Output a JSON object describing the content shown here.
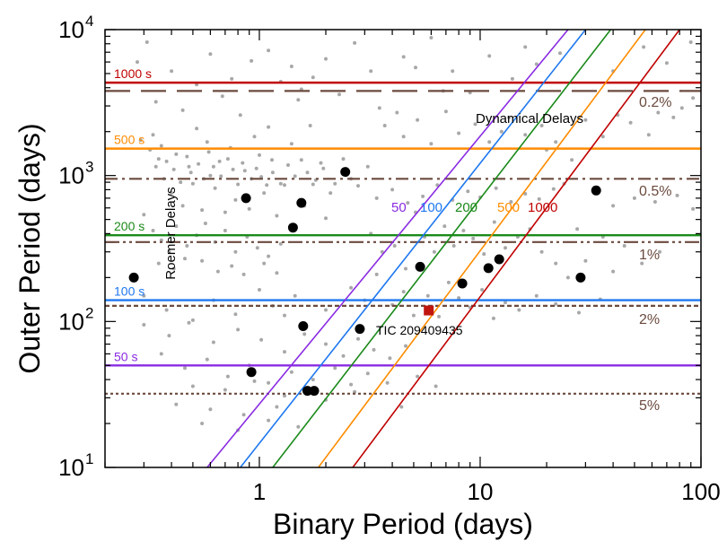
{
  "chart_data": {
    "type": "scatter",
    "xscale": "log",
    "yscale": "log",
    "xlim": [
      0.2,
      100
    ],
    "ylim": [
      10,
      10000
    ],
    "xlabel": "Binary Period (days)",
    "ylabel": "Outer Period (days)",
    "x_ticks": [
      {
        "value": 1,
        "label": "1"
      },
      {
        "value": 10,
        "label": "10"
      },
      {
        "value": 100,
        "label": "100"
      }
    ],
    "y_ticks": [
      {
        "value": 10,
        "base": "10",
        "exp": "1"
      },
      {
        "value": 100,
        "base": "10",
        "exp": "2"
      },
      {
        "value": 1000,
        "base": "10",
        "exp": "3"
      },
      {
        "value": 10000,
        "base": "10",
        "exp": "4"
      }
    ],
    "roemer_delays": [
      {
        "label": "50 s",
        "y": 50,
        "color": "#8a2be2"
      },
      {
        "label": "100 s",
        "y": 140,
        "color": "#1e78f0"
      },
      {
        "label": "200 s",
        "y": 390,
        "color": "#1a8a1a"
      },
      {
        "label": "500 s",
        "y": 1530,
        "color": "#ff8c00"
      },
      {
        "label": "1000 s",
        "y": 4330,
        "color": "#c00000"
      }
    ],
    "dynamical_delays": [
      {
        "label": "50",
        "color": "#8a2be2",
        "points": [
          [
            0.58,
            10
          ],
          [
            25,
            10000
          ]
        ]
      },
      {
        "label": "100",
        "color": "#1e78f0",
        "points": [
          [
            0.82,
            10
          ],
          [
            30,
            10000
          ]
        ]
      },
      {
        "label": "200",
        "color": "#1a8a1a",
        "points": [
          [
            1.15,
            10
          ],
          [
            39,
            10000
          ]
        ]
      },
      {
        "label": "500",
        "color": "#ff8c00",
        "points": [
          [
            1.85,
            10
          ],
          [
            56,
            10000
          ]
        ]
      },
      {
        "label": "1000",
        "color": "#c00000",
        "points": [
          [
            2.65,
            10
          ],
          [
            80,
            10000
          ]
        ]
      }
    ],
    "detection_limits": [
      {
        "label": "0.2%",
        "y": 3800,
        "dash": "28 12"
      },
      {
        "label": "0.5%",
        "y": 950,
        "dash": "14 5 3 5"
      },
      {
        "label": "1%",
        "y": 350,
        "dash": "16 4 3 4 3 4"
      },
      {
        "label": "2%",
        "y": 128,
        "dash": "5 3"
      },
      {
        "label": "5%",
        "y": 32,
        "dash": "3 3"
      }
    ],
    "region_labels": {
      "roemer": "Roemer Delays",
      "dynamical": "Dynamical Delays"
    },
    "detected_systems": [
      [
        0.27,
        200
      ],
      [
        0.87,
        700
      ],
      [
        0.92,
        45
      ],
      [
        1.42,
        440
      ],
      [
        1.55,
        650
      ],
      [
        1.58,
        93
      ],
      [
        1.65,
        33.5
      ],
      [
        1.77,
        33.5
      ],
      [
        2.45,
        1060
      ],
      [
        2.85,
        89
      ],
      [
        5.35,
        237
      ],
      [
        8.3,
        182
      ],
      [
        10.9,
        232
      ],
      [
        12.2,
        267
      ],
      [
        28.5,
        200
      ],
      [
        33.5,
        790
      ]
    ],
    "target": {
      "label": "TIC 209409435",
      "x": 5.85,
      "y": 119,
      "color": "#c0150f"
    },
    "background_points": [
      [
        0.31,
        8200
      ],
      [
        0.33,
        1900
      ],
      [
        0.35,
        1300
      ],
      [
        0.37,
        950
      ],
      [
        0.4,
        760
      ],
      [
        0.42,
        1400
      ],
      [
        0.45,
        620
      ],
      [
        0.48,
        1150
      ],
      [
        0.5,
        880
      ],
      [
        0.52,
        2100
      ],
      [
        0.55,
        580
      ],
      [
        0.58,
        1700
      ],
      [
        0.6,
        1000
      ],
      [
        0.63,
        820
      ],
      [
        0.66,
        1250
      ],
      [
        0.7,
        560
      ],
      [
        0.74,
        1550
      ],
      [
        0.78,
        680
      ],
      [
        0.82,
        2600
      ],
      [
        0.86,
        1080
      ],
      [
        0.9,
        590
      ],
      [
        0.95,
        1850
      ],
      [
        1.0,
        1380
      ],
      [
        1.05,
        760
      ],
      [
        1.1,
        2150
      ],
      [
        1.15,
        1050
      ],
      [
        1.2,
        530
      ],
      [
        1.3,
        860
      ],
      [
        1.4,
        1650
      ],
      [
        1.5,
        3300
      ],
      [
        1.6,
        620
      ],
      [
        1.7,
        2200
      ],
      [
        1.8,
        930
      ],
      [
        1.9,
        1220
      ],
      [
        2.0,
        510
      ],
      [
        2.1,
        760
      ],
      [
        0.3,
        540
      ],
      [
        0.33,
        420
      ],
      [
        0.36,
        360
      ],
      [
        0.39,
        300
      ],
      [
        0.42,
        450
      ],
      [
        0.47,
        330
      ],
      [
        0.52,
        390
      ],
      [
        0.57,
        470
      ],
      [
        0.63,
        350
      ],
      [
        0.7,
        420
      ],
      [
        0.78,
        300
      ],
      [
        0.88,
        380
      ],
      [
        0.98,
        320
      ],
      [
        1.1,
        280
      ],
      [
        1.25,
        340
      ],
      [
        0.35,
        250
      ],
      [
        0.41,
        230
      ],
      [
        0.46,
        270
      ],
      [
        0.55,
        260
      ],
      [
        0.65,
        220
      ],
      [
        0.75,
        240
      ],
      [
        0.85,
        210
      ],
      [
        1.05,
        250
      ],
      [
        1.2,
        215
      ],
      [
        0.29,
        1750
      ],
      [
        0.32,
        1500
      ],
      [
        0.34,
        1150
      ],
      [
        0.36,
        1600
      ],
      [
        0.38,
        1250
      ],
      [
        0.41,
        1100
      ],
      [
        0.44,
        900
      ],
      [
        0.47,
        1350
      ],
      [
        0.49,
        1050
      ],
      [
        0.53,
        1200
      ],
      [
        0.56,
        950
      ],
      [
        0.59,
        1450
      ],
      [
        0.62,
        1150
      ],
      [
        0.67,
        990
      ],
      [
        0.72,
        1300
      ],
      [
        0.76,
        1100
      ],
      [
        0.8,
        870
      ],
      [
        0.84,
        1220
      ],
      [
        0.92,
        950
      ],
      [
        0.97,
        1120
      ],
      [
        1.02,
        980
      ],
      [
        1.08,
        860
      ],
      [
        1.14,
        1280
      ],
      [
        1.25,
        880
      ],
      [
        1.35,
        1180
      ],
      [
        1.45,
        990
      ],
      [
        1.55,
        1280
      ],
      [
        1.65,
        1050
      ],
      [
        1.75,
        870
      ],
      [
        1.95,
        1120
      ],
      [
        2.2,
        880
      ],
      [
        2.4,
        1300
      ],
      [
        2.6,
        950
      ],
      [
        2.8,
        850
      ],
      [
        3.1,
        1150
      ],
      [
        0.34,
        3200
      ],
      [
        0.45,
        2800
      ],
      [
        0.52,
        4200
      ],
      [
        0.68,
        3500
      ],
      [
        0.92,
        6100
      ],
      [
        1.25,
        4400
      ],
      [
        1.55,
        3900
      ],
      [
        1.75,
        4700
      ],
      [
        2.3,
        3600
      ],
      [
        3.5,
        2900
      ],
      [
        4.2,
        2700
      ],
      [
        5.1,
        5500
      ],
      [
        6.8,
        3800
      ],
      [
        9.0,
        3700
      ],
      [
        12.5,
        2000
      ],
      [
        16.0,
        7600
      ],
      [
        20.0,
        1500
      ],
      [
        24.0,
        880
      ],
      [
        26.0,
        1280
      ],
      [
        36.0,
        1850
      ],
      [
        48.0,
        2300
      ],
      [
        64.0,
        2700
      ],
      [
        82.0,
        2900
      ],
      [
        92.0,
        3400
      ],
      [
        3.2,
        400
      ],
      [
        3.6,
        300
      ],
      [
        4.1,
        330
      ],
      [
        4.6,
        230
      ],
      [
        5.1,
        560
      ],
      [
        5.6,
        380
      ],
      [
        6.2,
        300
      ],
      [
        6.9,
        450
      ],
      [
        7.6,
        330
      ],
      [
        8.4,
        420
      ],
      [
        9.3,
        370
      ],
      [
        10.4,
        290
      ],
      [
        11.6,
        480
      ],
      [
        13.0,
        320
      ],
      [
        14.8,
        380
      ],
      [
        16.8,
        430
      ],
      [
        19.0,
        300
      ],
      [
        22.0,
        250
      ],
      [
        25.0,
        200
      ],
      [
        27.5,
        430
      ],
      [
        30.0,
        260
      ],
      [
        36.0,
        380
      ],
      [
        40.0,
        220
      ],
      [
        45.0,
        330
      ],
      [
        54.0,
        250
      ],
      [
        65.0,
        300
      ],
      [
        2.6,
        170
      ],
      [
        3.0,
        140
      ],
      [
        3.4,
        210
      ],
      [
        4.0,
        130
      ],
      [
        4.5,
        160
      ],
      [
        5.0,
        110
      ],
      [
        5.8,
        150
      ],
      [
        6.5,
        108
      ],
      [
        7.2,
        185
      ],
      [
        8.0,
        145
      ],
      [
        9.0,
        125
      ],
      [
        10.2,
        165
      ],
      [
        11.5,
        105
      ],
      [
        13.0,
        135
      ],
      [
        15.0,
        120
      ],
      [
        18.0,
        150
      ],
      [
        22.0,
        132
      ],
      [
        28.0,
        115
      ],
      [
        35.0,
        142
      ],
      [
        0.3,
        150
      ],
      [
        0.38,
        120
      ],
      [
        0.5,
        102
      ],
      [
        0.62,
        140
      ],
      [
        0.78,
        112
      ],
      [
        1.0,
        165
      ],
      [
        1.15,
        128
      ],
      [
        1.3,
        110
      ],
      [
        1.45,
        150
      ],
      [
        2.0,
        120
      ],
      [
        0.3,
        95
      ],
      [
        0.39,
        80
      ],
      [
        0.48,
        98
      ],
      [
        0.62,
        72
      ],
      [
        0.8,
        88
      ],
      [
        1.02,
        75
      ],
      [
        1.3,
        62
      ],
      [
        1.6,
        82
      ],
      [
        2.0,
        70
      ],
      [
        2.4,
        58
      ],
      [
        2.8,
        76
      ],
      [
        3.3,
        64
      ],
      [
        3.9,
        56
      ],
      [
        4.6,
        68
      ],
      [
        0.36,
        60
      ],
      [
        0.46,
        48
      ],
      [
        0.58,
        55
      ],
      [
        0.72,
        42
      ],
      [
        0.9,
        50
      ],
      [
        1.1,
        38
      ],
      [
        1.4,
        45
      ],
      [
        1.75,
        40
      ],
      [
        2.2,
        48
      ],
      [
        2.6,
        37
      ],
      [
        3.1,
        44
      ],
      [
        0.5,
        36
      ],
      [
        0.7,
        34
      ],
      [
        0.95,
        39
      ],
      [
        1.3,
        31
      ],
      [
        2.0,
        29
      ],
      [
        2.7,
        33
      ],
      [
        0.42,
        27
      ],
      [
        0.6,
        25
      ],
      [
        0.85,
        23
      ],
      [
        1.2,
        26
      ],
      [
        0.55,
        20
      ],
      [
        0.8,
        18
      ],
      [
        1.1,
        21
      ],
      [
        1.5,
        19
      ],
      [
        3.8,
        38
      ],
      [
        5.2,
        42
      ],
      [
        6.3,
        36
      ],
      [
        4.4,
        26
      ],
      [
        0.28,
        6000
      ],
      [
        0.4,
        5200
      ],
      [
        0.6,
        6800
      ],
      [
        0.75,
        4600
      ],
      [
        1.1,
        7200
      ],
      [
        1.4,
        5600
      ],
      [
        2.0,
        6300
      ],
      [
        2.7,
        8100
      ],
      [
        3.2,
        5200
      ],
      [
        4.5,
        6500
      ],
      [
        6.0,
        8800
      ],
      [
        7.5,
        5200
      ],
      [
        11.0,
        6600
      ],
      [
        14.0,
        4600
      ],
      [
        18.0,
        5800
      ],
      [
        23.0,
        6900
      ],
      [
        40.0,
        5200
      ],
      [
        55.0,
        7600
      ],
      [
        70.0,
        5900
      ],
      [
        90.0,
        8200
      ],
      [
        3.7,
        2200
      ],
      [
        4.5,
        1850
      ],
      [
        5.2,
        2400
      ],
      [
        6.0,
        1650
      ],
      [
        7.0,
        2750
      ],
      [
        8.0,
        1950
      ],
      [
        9.5,
        2250
      ],
      [
        11.0,
        1700
      ],
      [
        13.5,
        2500
      ],
      [
        16.0,
        1900
      ],
      [
        19.0,
        2200
      ],
      [
        22.0,
        1700
      ],
      [
        30.0,
        2400
      ],
      [
        42.0,
        2600
      ],
      [
        58.0,
        1900
      ],
      [
        75.0,
        2500
      ],
      [
        3.4,
        700
      ],
      [
        4.0,
        800
      ],
      [
        4.7,
        650
      ],
      [
        5.5,
        720
      ],
      [
        6.4,
        860
      ],
      [
        7.5,
        680
      ],
      [
        8.8,
        780
      ],
      [
        10.0,
        710
      ],
      [
        11.8,
        820
      ],
      [
        13.8,
        660
      ],
      [
        16.0,
        750
      ],
      [
        18.5,
        690
      ],
      [
        21.5,
        810
      ],
      [
        40.0,
        620
      ],
      [
        50.0,
        700
      ],
      [
        62.0,
        660
      ],
      [
        78.0,
        730
      ],
      [
        92.0,
        590
      ]
    ]
  }
}
